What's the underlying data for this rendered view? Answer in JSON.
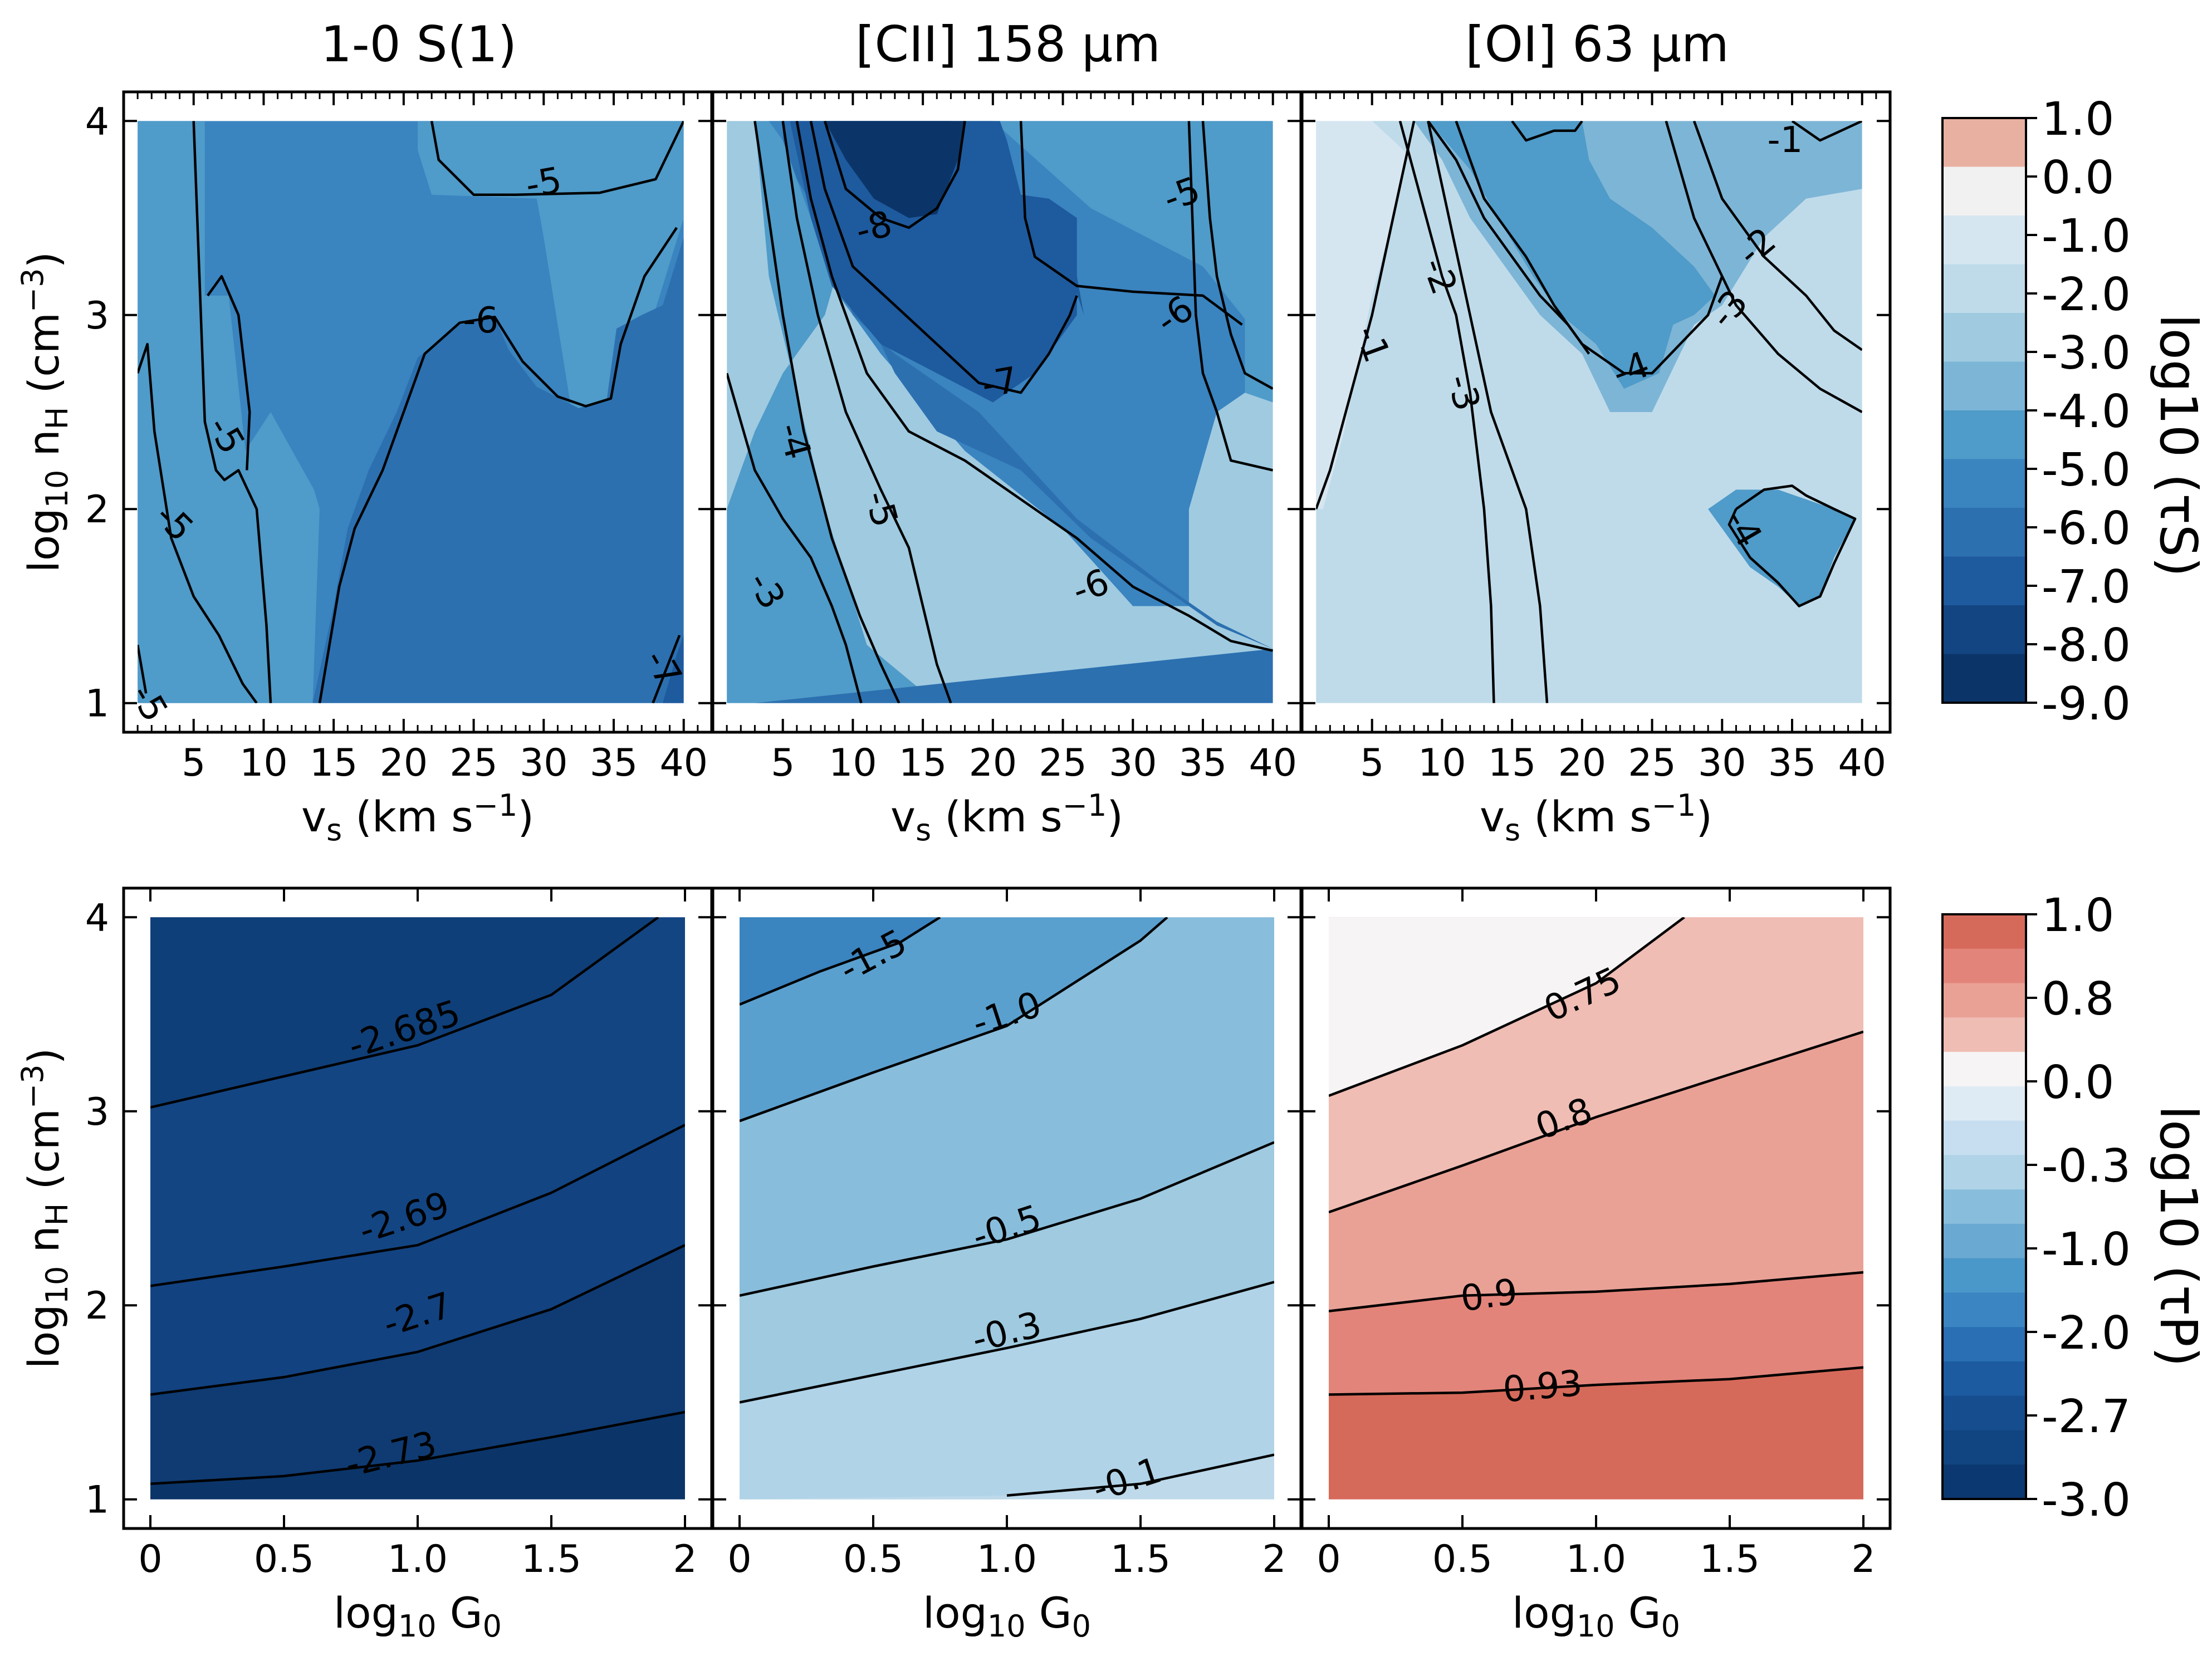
{
  "figure": {
    "column_titles": [
      "1-0 S(1)",
      "[CII] 158 μm",
      "[OI] 63 μm"
    ]
  },
  "chart_data": [
    {
      "type": "contour",
      "row": "top",
      "title": "1-0 S(1)",
      "xlabel": "vs (km s−1)",
      "ylabel": "log10 nH (cm−3)",
      "xlim": [
        0,
        42
      ],
      "ylim": [
        0.85,
        4.15
      ],
      "xticks": [
        5,
        10,
        15,
        20,
        25,
        30,
        35,
        40
      ],
      "yticks": [
        1,
        2,
        3,
        4
      ],
      "data_extent": {
        "x": [
          1,
          40
        ],
        "y": [
          1,
          4
        ]
      },
      "background_level": -6.0,
      "contours": [
        {
          "level": -5,
          "label": "-5"
        },
        {
          "level": -6,
          "label": "-6"
        },
        {
          "level": -7,
          "label": "-7"
        }
      ]
    },
    {
      "type": "contour",
      "row": "top",
      "title": "[CII] 158 μm",
      "xlabel": "vs (km s−1)",
      "ylabel": "log10 nH (cm−3)",
      "xlim": [
        0,
        42
      ],
      "ylim": [
        0.85,
        4.15
      ],
      "xticks": [
        5,
        10,
        15,
        20,
        25,
        30,
        35,
        40
      ],
      "yticks": [
        1,
        2,
        3,
        4
      ],
      "data_extent": {
        "x": [
          1,
          40
        ],
        "y": [
          1,
          4
        ]
      },
      "background_level": -3.0,
      "contours": [
        {
          "level": -3,
          "label": "-3"
        },
        {
          "level": -4,
          "label": "-4"
        },
        {
          "level": -5,
          "label": "-5"
        },
        {
          "level": -6,
          "label": "-6"
        },
        {
          "level": -7,
          "label": "-7"
        },
        {
          "level": -8,
          "label": "-8"
        }
      ]
    },
    {
      "type": "contour",
      "row": "top",
      "title": "[OI] 63 μm",
      "xlabel": "vs (km s−1)",
      "ylabel": "log10 nH (cm−3)",
      "xlim": [
        0,
        42
      ],
      "ylim": [
        0.85,
        4.15
      ],
      "xticks": [
        5,
        10,
        15,
        20,
        25,
        30,
        35,
        40
      ],
      "yticks": [
        1,
        2,
        3,
        4
      ],
      "data_extent": {
        "x": [
          1,
          40
        ],
        "y": [
          1,
          4
        ]
      },
      "background_level": -2.0,
      "contours": [
        {
          "level": -1,
          "label": "-1"
        },
        {
          "level": -2,
          "label": "-2"
        },
        {
          "level": -3,
          "label": "-3"
        },
        {
          "level": -4,
          "label": "-4"
        }
      ]
    },
    {
      "type": "contour",
      "row": "bottom",
      "title": "1-0 S(1)",
      "xlabel": "log10 G0",
      "ylabel": "log10 nH (cm−3)",
      "xlim": [
        -0.1,
        2.1
      ],
      "ylim": [
        0.85,
        4.15
      ],
      "xticks": [
        "0",
        "0.5",
        "1.0",
        "1.5",
        "2"
      ],
      "yticks": [
        1,
        2,
        3,
        4
      ],
      "data_extent": {
        "x": [
          0,
          2
        ],
        "y": [
          1,
          4
        ]
      },
      "contours": [
        {
          "level": -2.685,
          "label": "-2.685",
          "points": [
            [
              0,
              3.02
            ],
            [
              0.5,
              3.18
            ],
            [
              1.0,
              3.34
            ],
            [
              1.5,
              3.6
            ],
            [
              1.9,
              4.0
            ]
          ]
        },
        {
          "level": -2.69,
          "label": "-2.69",
          "points": [
            [
              0,
              2.1
            ],
            [
              0.5,
              2.2
            ],
            [
              1.0,
              2.31
            ],
            [
              1.5,
              2.58
            ],
            [
              2.0,
              2.93
            ]
          ]
        },
        {
          "level": -2.7,
          "label": "-2.7",
          "points": [
            [
              0,
              1.54
            ],
            [
              0.5,
              1.63
            ],
            [
              1.0,
              1.76
            ],
            [
              1.5,
              1.98
            ],
            [
              2.0,
              2.31
            ]
          ]
        },
        {
          "level": -2.73,
          "label": "-2.73",
          "points": [
            [
              0,
              1.08
            ],
            [
              0.5,
              1.12
            ],
            [
              1.0,
              1.2
            ],
            [
              1.5,
              1.32
            ],
            [
              2.0,
              1.45
            ]
          ]
        }
      ]
    },
    {
      "type": "contour",
      "row": "bottom",
      "title": "[CII] 158 μm",
      "xlabel": "log10 G0",
      "ylabel": "log10 nH (cm−3)",
      "xlim": [
        -0.1,
        2.1
      ],
      "ylim": [
        0.85,
        4.15
      ],
      "xticks": [
        "0",
        "0.5",
        "1.0",
        "1.5",
        "2"
      ],
      "yticks": [
        1,
        2,
        3,
        4
      ],
      "data_extent": {
        "x": [
          0,
          2
        ],
        "y": [
          1,
          4
        ]
      },
      "contours": [
        {
          "level": -1.5,
          "label": "-1.5",
          "points": [
            [
              0,
              3.55
            ],
            [
              0.3,
              3.72
            ],
            [
              0.6,
              3.87
            ],
            [
              0.75,
              4.0
            ]
          ]
        },
        {
          "level": -1.0,
          "label": "-1.0",
          "points": [
            [
              0,
              2.95
            ],
            [
              0.5,
              3.2
            ],
            [
              1.0,
              3.44
            ],
            [
              1.5,
              3.88
            ],
            [
              1.6,
              4.0
            ]
          ]
        },
        {
          "level": -0.5,
          "label": "-0.5",
          "points": [
            [
              0,
              2.05
            ],
            [
              0.5,
              2.2
            ],
            [
              1.0,
              2.34
            ],
            [
              1.5,
              2.55
            ],
            [
              2.0,
              2.84
            ]
          ]
        },
        {
          "level": -0.3,
          "label": "-0.3",
          "points": [
            [
              0,
              1.5
            ],
            [
              0.5,
              1.64
            ],
            [
              1.0,
              1.78
            ],
            [
              1.5,
              1.93
            ],
            [
              2.0,
              2.12
            ]
          ]
        },
        {
          "level": -0.1,
          "label": "-0.1",
          "points": [
            [
              1.0,
              1.02
            ],
            [
              1.5,
              1.08
            ],
            [
              2.0,
              1.23
            ]
          ]
        }
      ]
    },
    {
      "type": "contour",
      "row": "bottom",
      "title": "[OI] 63 μm",
      "xlabel": "log10 G0",
      "ylabel": "log10 nH (cm−3)",
      "xlim": [
        -0.1,
        2.1
      ],
      "ylim": [
        0.85,
        4.15
      ],
      "xticks": [
        "0",
        "0.5",
        "1.0",
        "1.5",
        "2"
      ],
      "yticks": [
        1,
        2,
        3,
        4
      ],
      "data_extent": {
        "x": [
          0,
          2
        ],
        "y": [
          1,
          4
        ]
      },
      "contours": [
        {
          "level": 0.75,
          "label": "0.75",
          "points": [
            [
              0,
              3.08
            ],
            [
              0.5,
              3.34
            ],
            [
              1.0,
              3.66
            ],
            [
              1.33,
              4.0
            ]
          ]
        },
        {
          "level": 0.8,
          "label": "0.8",
          "points": [
            [
              0,
              2.48
            ],
            [
              0.5,
              2.72
            ],
            [
              1.0,
              2.97
            ],
            [
              1.5,
              3.19
            ],
            [
              2.0,
              3.41
            ]
          ]
        },
        {
          "level": 0.9,
          "label": "0.9",
          "points": [
            [
              0,
              1.97
            ],
            [
              0.5,
              2.05
            ],
            [
              1.0,
              2.07
            ],
            [
              1.5,
              2.11
            ],
            [
              2.0,
              2.17
            ]
          ]
        },
        {
          "level": 0.93,
          "label": "0.93",
          "points": [
            [
              0,
              1.54
            ],
            [
              0.5,
              1.55
            ],
            [
              1.0,
              1.59
            ],
            [
              1.5,
              1.62
            ],
            [
              2.0,
              1.68
            ]
          ]
        }
      ]
    }
  ],
  "colorbars": [
    {
      "label": "log10 (τS)",
      "tick_labels": [
        "1.0",
        "0.0",
        "-1.0",
        "-2.0",
        "-3.0",
        "-4.0",
        "-5.0",
        "-6.0",
        "-7.0",
        "-8.0",
        "-9.0"
      ],
      "colors": [
        "#e8b0a0",
        "#f1f1f2",
        "#d6e6f1",
        "#bfdbea",
        "#9fcae0",
        "#7db5d6",
        "#4f9bc9",
        "#3a84c0",
        "#2c70b0",
        "#1e5a9e",
        "#134583",
        "#0b3569"
      ]
    },
    {
      "label": "log10 (τP)",
      "tick_labels": [
        "1.0",
        "0.8",
        "0.0",
        "-0.3",
        "-1.0",
        "-2.0",
        "-2.7",
        "-3.0"
      ],
      "colors": [
        "#d66a5a",
        "#e2847a",
        "#e9a196",
        "#efbdb4",
        "#f6f4f4",
        "#dfebf4",
        "#c6def0",
        "#b0d3e7",
        "#89bddc",
        "#6aa9d2",
        "#4a97c9",
        "#3b86c2",
        "#2a6fb3",
        "#1d5ba1",
        "#164d8e",
        "#114581",
        "#0c3871"
      ]
    }
  ]
}
